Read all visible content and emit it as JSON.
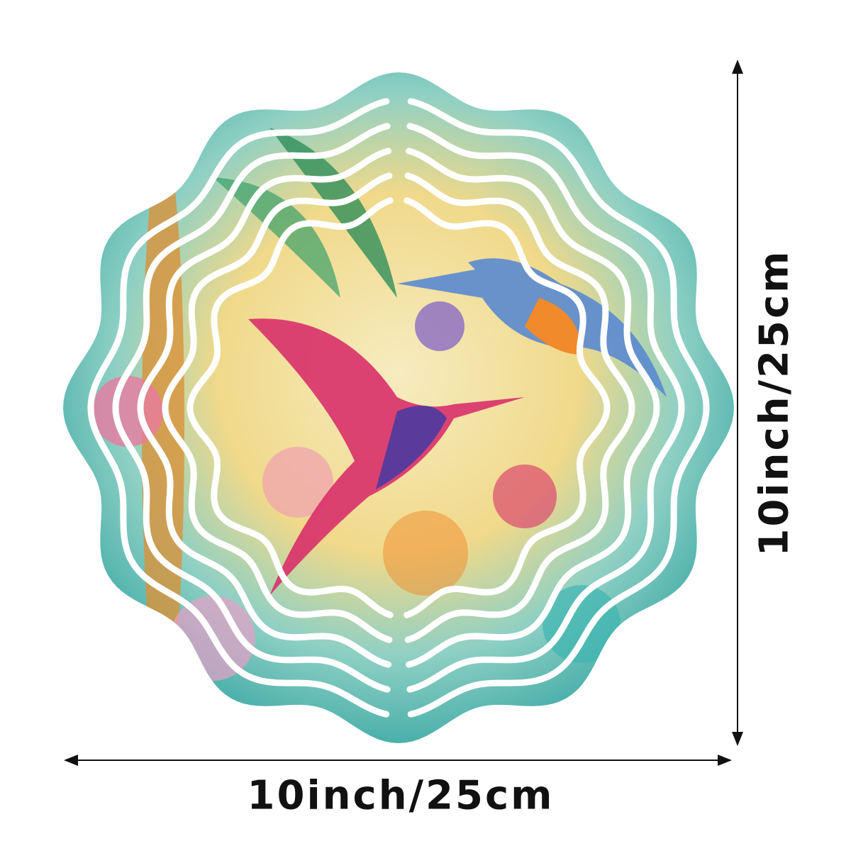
{
  "product": {
    "name": "hummingbird wind spinner",
    "dimensions": {
      "width_label": "10inch/25cm",
      "height_label": "10inch/25cm"
    },
    "colors": {
      "teal": "#3fb5b0",
      "yellow": "#f3dc8a",
      "magenta": "#d8306a",
      "purple": "#5a3a9a",
      "orange": "#f08a2a",
      "green": "#2f8f5a",
      "arrow": "#111111"
    }
  }
}
